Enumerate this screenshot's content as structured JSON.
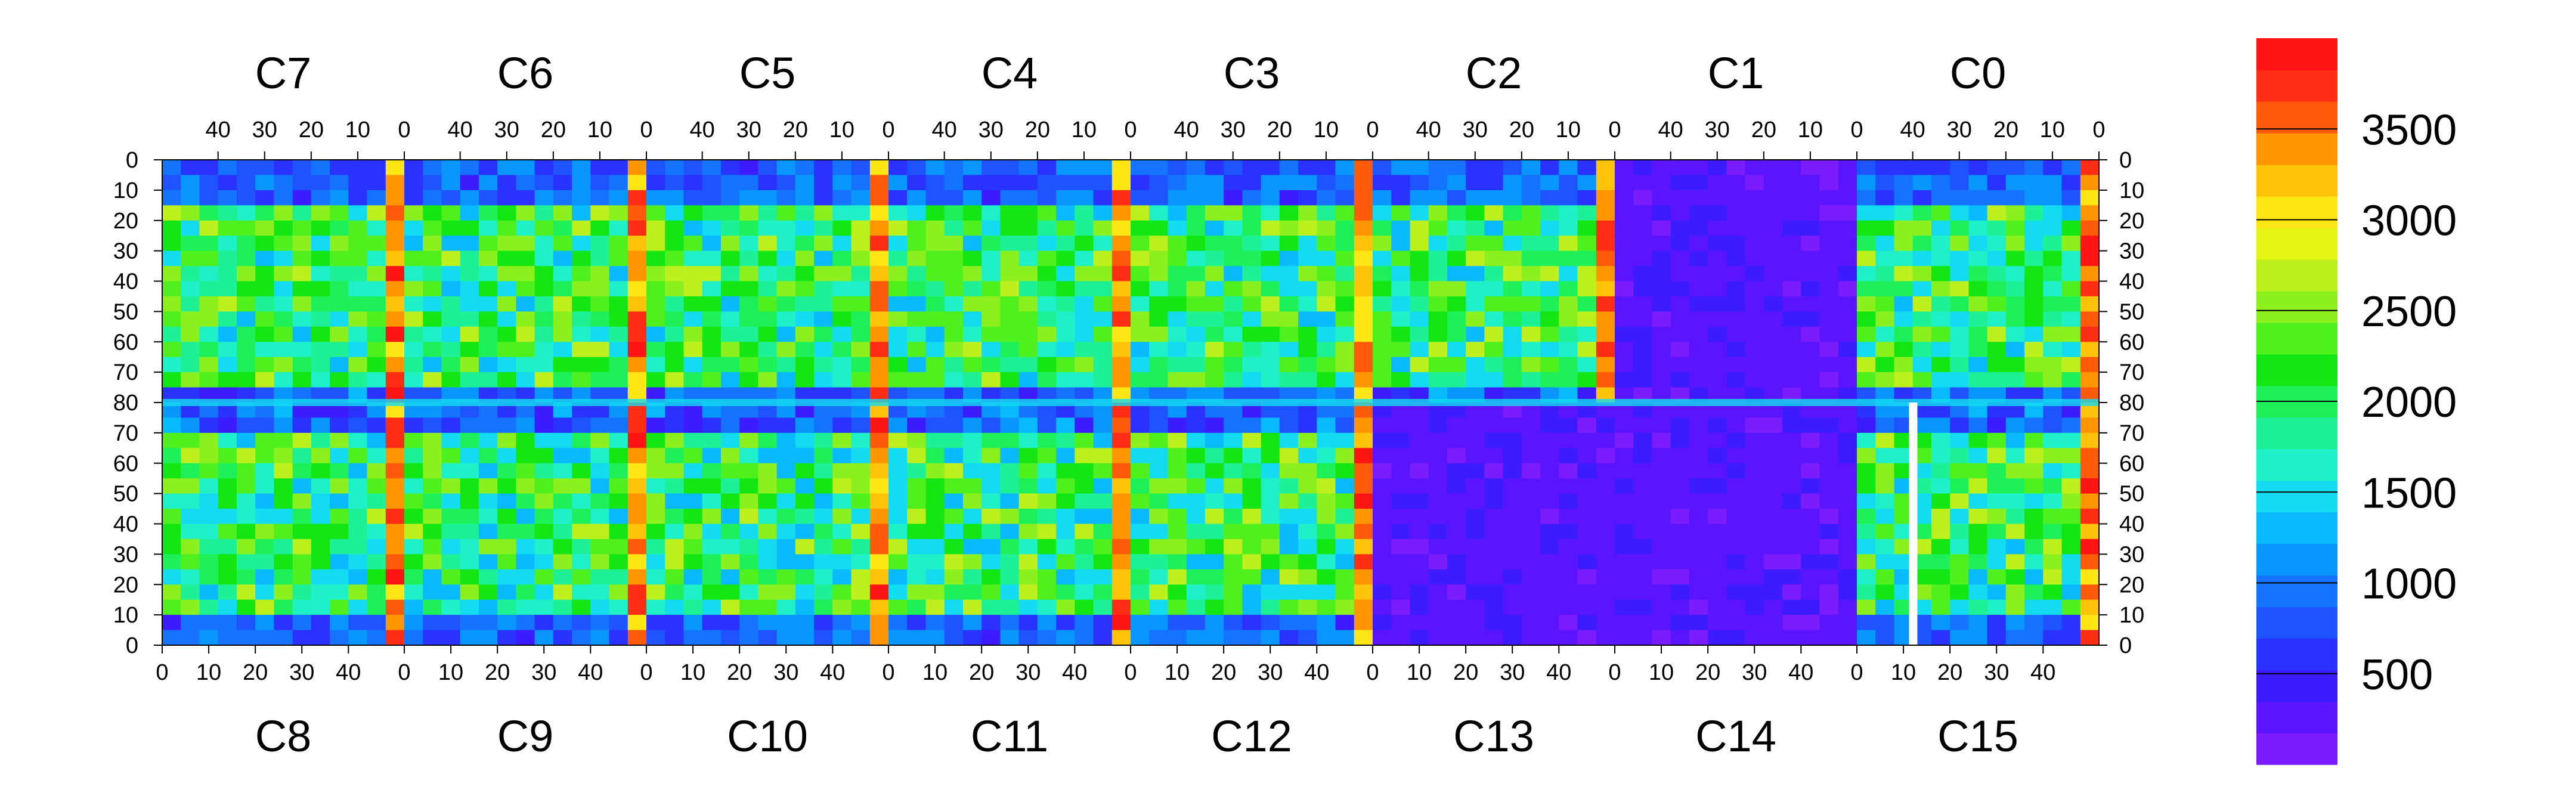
{
  "chart_data": {
    "type": "heatmap",
    "title": "",
    "xlabel": "",
    "ylabel": "",
    "top_chips": [
      "C7",
      "C6",
      "C5",
      "C4",
      "C3",
      "C2",
      "C1",
      "C0"
    ],
    "bottom_chips": [
      "C8",
      "C9",
      "C10",
      "C11",
      "C12",
      "C13",
      "C14",
      "C15"
    ],
    "top_x_ticks": [
      "40",
      "30",
      "20",
      "10",
      "0"
    ],
    "bottom_x_ticks": [
      "0",
      "10",
      "20",
      "30",
      "40"
    ],
    "y_ticks_top_half": [
      "0",
      "10",
      "20",
      "30",
      "40",
      "50",
      "60",
      "70"
    ],
    "y_ticks_middle": "80",
    "y_ticks_bottom_half": [
      "70",
      "60",
      "50",
      "40",
      "30",
      "20",
      "10",
      "0"
    ],
    "columns_per_chip": 52,
    "rows_per_half": 80,
    "x_range": [
      0,
      52
    ],
    "y_range": [
      0,
      80
    ],
    "colorbar": {
      "range": [
        0,
        4000
      ],
      "ticks": [
        "500",
        "1000",
        "1500",
        "2000",
        "2500",
        "3000",
        "3500"
      ],
      "tick_values": [
        500,
        1000,
        1500,
        2000,
        2500,
        3000,
        3500
      ],
      "colors": [
        "#7b1cff",
        "#5a14ff",
        "#3c1cff",
        "#2a32ff",
        "#1e54ff",
        "#1474ff",
        "#0a96ff",
        "#0abaff",
        "#14dcf0",
        "#1ef0c8",
        "#1ef096",
        "#1ef05a",
        "#14e614",
        "#50f01e",
        "#8cf01e",
        "#bef01e",
        "#e6f514",
        "#ffe614",
        "#ffc30a",
        "#ff9600",
        "#ff5a0a",
        "#ff2d14",
        "#ff1414"
      ]
    }
  }
}
